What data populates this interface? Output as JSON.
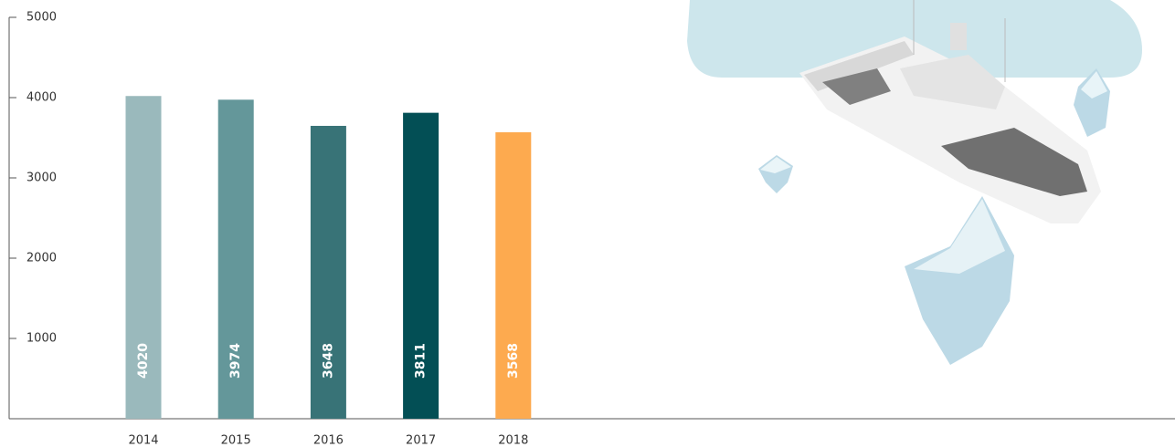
{
  "chart_data": {
    "type": "bar",
    "categories": [
      "2014",
      "2015",
      "2016",
      "2017",
      "2018"
    ],
    "values": [
      4020,
      3974,
      3648,
      3811,
      3568
    ],
    "colors": [
      "#9ab9bc",
      "#64979a",
      "#387377",
      "#034f55",
      "#fdaa4f"
    ],
    "ylim": [
      0,
      5000
    ],
    "yticks": [
      1000,
      2000,
      3000,
      4000,
      5000
    ],
    "grid": false
  }
}
